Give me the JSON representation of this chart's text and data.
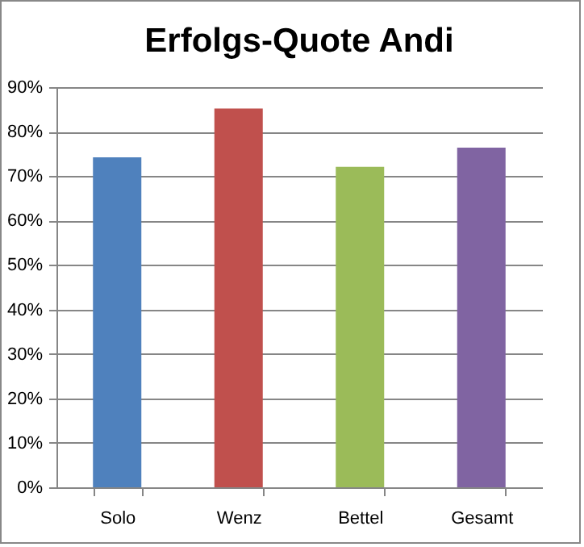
{
  "chart_data": {
    "type": "bar",
    "title": "Erfolgs-Quote Andi",
    "categories": [
      "Solo",
      "Wenz",
      "Bettel",
      "Gesamt"
    ],
    "values": [
      74.2,
      85.2,
      72.1,
      76.4
    ],
    "colors": [
      "#4f81bd",
      "#c0504d",
      "#9bbb59",
      "#8064a2"
    ],
    "ylim": [
      0,
      90
    ],
    "yticks": [
      {
        "value": 0,
        "label": "0%"
      },
      {
        "value": 10,
        "label": "10%"
      },
      {
        "value": 20,
        "label": "20%"
      },
      {
        "value": 30,
        "label": "30%"
      },
      {
        "value": 40,
        "label": "40%"
      },
      {
        "value": 50,
        "label": "50%"
      },
      {
        "value": 60,
        "label": "60%"
      },
      {
        "value": 70,
        "label": "70%"
      },
      {
        "value": 80,
        "label": "80%"
      },
      {
        "value": 90,
        "label": "90%"
      }
    ],
    "grid": "y"
  }
}
